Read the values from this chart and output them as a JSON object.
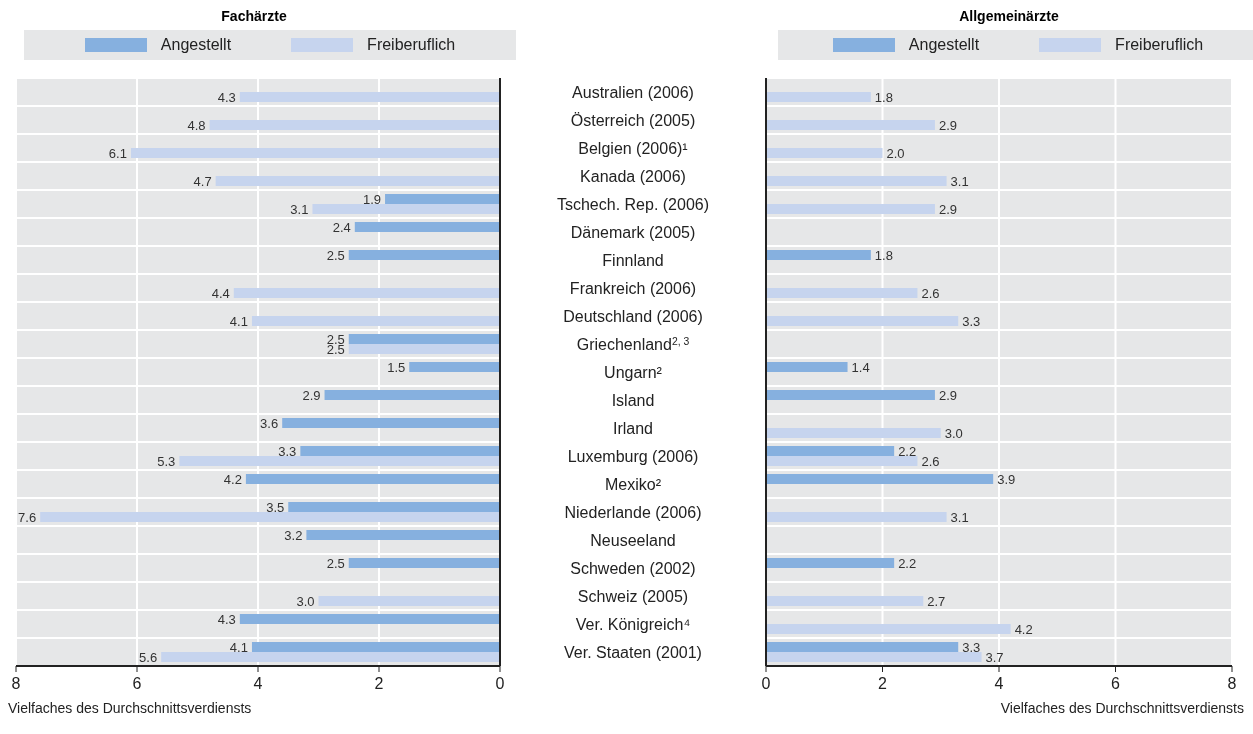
{
  "chart_data": [
    {
      "type": "bar",
      "orientation": "horizontal",
      "title": "Fachärzte",
      "xlabel": "Vielfaches des Durchschnittsverdiensts",
      "categories": [
        "Australien (2006)",
        "Österreich (2005)",
        "Belgien (2006)¹",
        "Kanada (2006)",
        "Tschech. Rep. (2006)",
        "Dänemark (2005)",
        "Finnland",
        "Frankreich (2006)",
        "Deutschland (2006)",
        "Griechenland$^{2, 3}$",
        "Ungarn²",
        "Island",
        "Irland",
        "Luxemburg (2006)",
        "Mexiko²",
        "Niederlande (2006)",
        "Neuseeland",
        "Schweden (2002)",
        "Schweiz (2005)",
        "Ver. Königreich⁴",
        "Ver. Staaten (2001)"
      ],
      "series": [
        {
          "name": "Angestellt",
          "color": "#86b0df",
          "values": [
            null,
            null,
            null,
            null,
            1.9,
            2.4,
            2.5,
            null,
            null,
            2.5,
            1.5,
            2.9,
            3.6,
            3.3,
            4.2,
            3.5,
            3.2,
            2.5,
            null,
            4.3,
            4.1
          ],
          "value_labels": [
            null,
            null,
            null,
            null,
            "1.9",
            "2.4",
            "2.5",
            null,
            null,
            "2.5",
            "1.5",
            "2.9",
            "3.6",
            "3.3",
            "4.2",
            "3.5",
            "3.2",
            "2.5",
            null,
            "4.3",
            "4.1"
          ]
        },
        {
          "name": "Freiberuflich",
          "color": "#c6d4ee",
          "values": [
            4.3,
            4.8,
            6.1,
            4.7,
            3.1,
            null,
            null,
            4.4,
            4.1,
            2.5,
            null,
            null,
            null,
            5.3,
            null,
            7.6,
            null,
            null,
            3.0,
            null,
            5.6
          ],
          "value_labels": [
            "4.3",
            "4.8",
            "6.1",
            "4.7",
            "3.1",
            null,
            null,
            "4.4",
            "4.1",
            "2.5",
            null,
            null,
            null,
            "5.3",
            null,
            "7.6",
            null,
            null,
            "3.0",
            null,
            "5.6"
          ]
        }
      ],
      "xlim": [
        8,
        0
      ],
      "xticks": [
        8,
        6,
        4,
        2,
        0
      ],
      "grid": true,
      "legend": "top"
    },
    {
      "type": "bar",
      "orientation": "horizontal",
      "title": "Allgemeinärzte",
      "xlabel": "Vielfaches des Durchschnittsverdiensts",
      "categories": [
        null,
        null,
        null,
        null,
        null,
        null,
        null,
        null,
        null,
        null,
        null,
        null,
        null,
        null,
        null,
        null,
        null,
        null,
        null,
        null,
        null
      ],
      "series": [
        {
          "name": "Angestellt",
          "color": "#86b0df",
          "values": [
            null,
            null,
            null,
            null,
            null,
            null,
            1.8,
            null,
            null,
            null,
            1.4,
            2.9,
            null,
            2.2,
            3.9,
            null,
            null,
            2.2,
            null,
            null,
            3.3
          ],
          "value_labels": [
            null,
            null,
            null,
            null,
            null,
            null,
            "1.8",
            null,
            null,
            null,
            "1.4",
            "2.9",
            null,
            "2.2",
            "3.9",
            null,
            null,
            "2.2",
            null,
            null,
            "3.3"
          ]
        },
        {
          "name": "Freiberuflich",
          "color": "#c6d4ee",
          "values": [
            1.8,
            2.9,
            2.0,
            3.1,
            2.9,
            null,
            null,
            2.6,
            3.3,
            null,
            null,
            null,
            3.0,
            2.6,
            null,
            3.1,
            null,
            null,
            2.7,
            4.2,
            3.7
          ],
          "value_labels": [
            "1.8",
            "2.9",
            "2.0",
            "3.1",
            "2.9",
            null,
            null,
            "2.6",
            "3.3",
            null,
            null,
            null,
            "3.0",
            "2.6",
            null,
            "3.1",
            null,
            null,
            "2.7",
            "4.2",
            "3.7"
          ]
        }
      ],
      "xlim": [
        0,
        8
      ],
      "xticks": [
        0,
        2,
        4,
        6,
        8
      ],
      "grid": true,
      "legend": "top",
      "tick_labels": "x"
    }
  ]
}
